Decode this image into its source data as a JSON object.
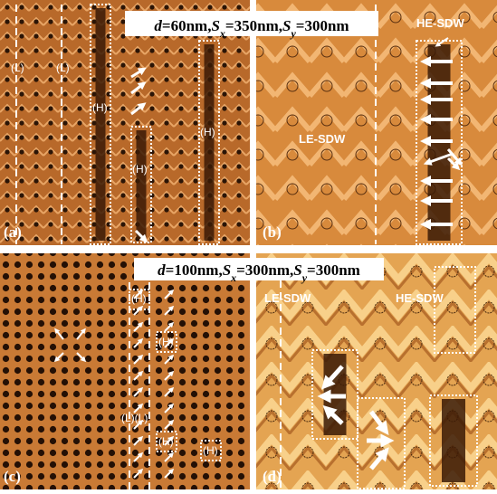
{
  "captions": [
    [
      "d",
      "=60nm,",
      "S",
      "x",
      "=350nm,",
      "S",
      "y",
      "=300nm"
    ],
    [
      "d",
      "=100nm,",
      "S",
      "x",
      "=300nm,",
      "S",
      "y",
      "=300nm"
    ]
  ],
  "panels": [
    {
      "label": "(a)",
      "markers": [
        "(L)",
        "(L)",
        "(H)",
        "(H)",
        "(H)"
      ]
    },
    {
      "label": "(b)",
      "markers": [
        "HE-SDW",
        "LE-SDW"
      ]
    },
    {
      "label": "(c)",
      "markers": [
        "(H)",
        "(H)",
        "(L)(L)",
        "(H)",
        "(H)"
      ]
    },
    {
      "label": "(d)",
      "markers": [
        "LE-SDW",
        "HE-SDW"
      ]
    }
  ]
}
